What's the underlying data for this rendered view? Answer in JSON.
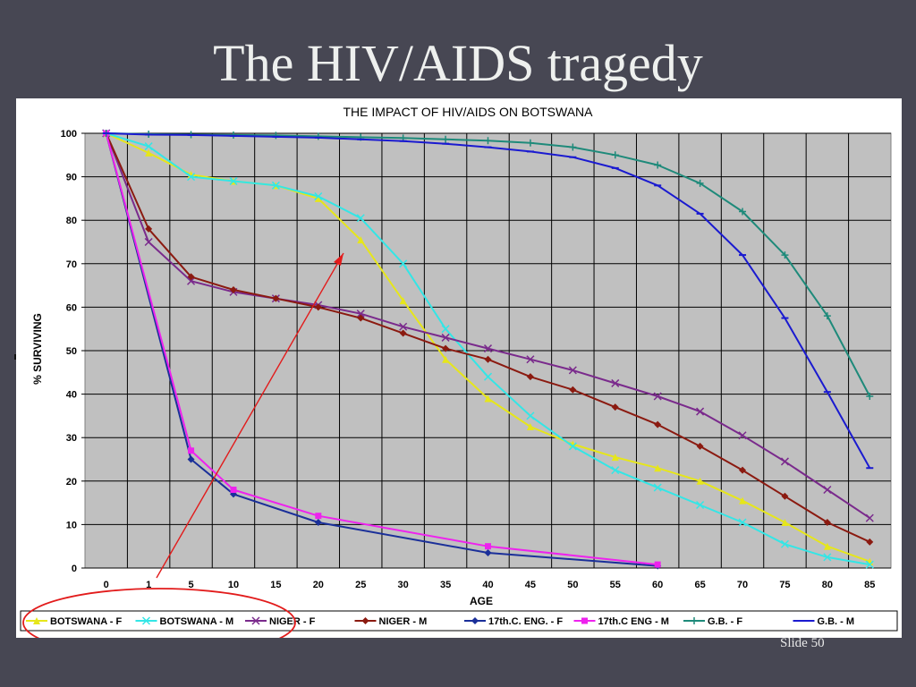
{
  "slide": {
    "title": "The HIV/AIDS tragedy",
    "slide_number": "Slide 50"
  },
  "chart_data": {
    "type": "line",
    "title": "THE IMPACT OF HIV/AIDS ON BOTSWANA",
    "xlabel": "AGE",
    "ylabel": "% SURVIVING",
    "x": [
      0,
      1,
      5,
      10,
      15,
      20,
      25,
      30,
      35,
      40,
      45,
      50,
      55,
      60,
      65,
      70,
      75,
      80,
      85
    ],
    "ylim": [
      0,
      100
    ],
    "yticks": [
      0,
      10,
      20,
      30,
      40,
      50,
      60,
      70,
      80,
      90,
      100
    ],
    "grid": true,
    "plot_background": "#c0c0c0",
    "legend_position": "bottom",
    "series": [
      {
        "name": "BOTSWANA - F",
        "color": "#e6e61a",
        "marker": "triangle",
        "x": [
          0,
          1,
          5,
          10,
          15,
          20,
          25,
          30,
          35,
          40,
          45,
          50,
          55,
          60,
          65,
          70,
          75,
          80,
          85
        ],
        "values": [
          100,
          95.5,
          90.5,
          89,
          88,
          85,
          75.5,
          61.5,
          48,
          39,
          32.5,
          28.5,
          25.5,
          23,
          20,
          15.5,
          10.5,
          5,
          1.5
        ]
      },
      {
        "name": "BOTSWANA - M",
        "color": "#33e6e6",
        "marker": "x",
        "x": [
          0,
          1,
          5,
          10,
          15,
          20,
          25,
          30,
          35,
          40,
          45,
          50,
          55,
          60,
          65,
          70,
          75,
          80,
          85
        ],
        "values": [
          100,
          97,
          90,
          89,
          88,
          85.5,
          80.5,
          70,
          55,
          44,
          35,
          28,
          22.5,
          18.5,
          14.5,
          10.5,
          5.5,
          2.5,
          0.8
        ]
      },
      {
        "name": "NIGER - F",
        "color": "#7a2a8c",
        "marker": "x",
        "x": [
          0,
          1,
          5,
          10,
          15,
          20,
          25,
          30,
          35,
          40,
          45,
          50,
          55,
          60,
          65,
          70,
          75,
          80,
          85
        ],
        "values": [
          100,
          75,
          66,
          63.5,
          62,
          60.5,
          58.5,
          55.5,
          53,
          50.5,
          48,
          45.5,
          42.5,
          39.5,
          36,
          30.5,
          24.5,
          18,
          11.5
        ]
      },
      {
        "name": "NIGER - M",
        "color": "#8b1a10",
        "marker": "diamond",
        "x": [
          0,
          1,
          5,
          10,
          15,
          20,
          25,
          30,
          35,
          40,
          45,
          50,
          55,
          60,
          65,
          70,
          75,
          80,
          85
        ],
        "values": [
          100,
          78,
          67,
          64,
          62,
          60,
          57.5,
          54,
          50.5,
          48,
          44,
          41,
          37,
          33,
          28,
          22.5,
          16.5,
          10.5,
          6
        ]
      },
      {
        "name": "17th.C. ENG. - F",
        "color": "#1a2f99",
        "marker": "diamond",
        "x": [
          0,
          5,
          10,
          20,
          40,
          60
        ],
        "values": [
          100,
          25,
          17,
          10.5,
          3.5,
          0.5
        ]
      },
      {
        "name": "17th.C ENG - M",
        "color": "#ee22ee",
        "marker": "square",
        "x": [
          0,
          5,
          10,
          20,
          40,
          60
        ],
        "values": [
          100,
          27,
          18,
          12,
          5,
          0.8
        ]
      },
      {
        "name": "G.B. - F",
        "color": "#1e8a7a",
        "marker": "plus",
        "x": [
          0,
          1,
          5,
          10,
          15,
          20,
          25,
          30,
          35,
          40,
          45,
          50,
          55,
          60,
          65,
          70,
          75,
          80,
          85
        ],
        "values": [
          100,
          99.8,
          99.7,
          99.6,
          99.5,
          99.3,
          99.1,
          98.9,
          98.6,
          98.3,
          97.8,
          96.8,
          95,
          92.7,
          88.5,
          82,
          72,
          58,
          39.5
        ]
      },
      {
        "name": "G.B. - M",
        "color": "#1a1ad0",
        "marker": "dash",
        "x": [
          0,
          1,
          5,
          10,
          15,
          20,
          25,
          30,
          35,
          40,
          45,
          50,
          55,
          60,
          65,
          70,
          75,
          80,
          85
        ],
        "values": [
          100,
          99.7,
          99.6,
          99.4,
          99.2,
          99,
          98.6,
          98.2,
          97.6,
          96.8,
          95.8,
          94.5,
          92,
          88,
          81.5,
          72,
          57.5,
          40.5,
          23
        ]
      }
    ]
  }
}
